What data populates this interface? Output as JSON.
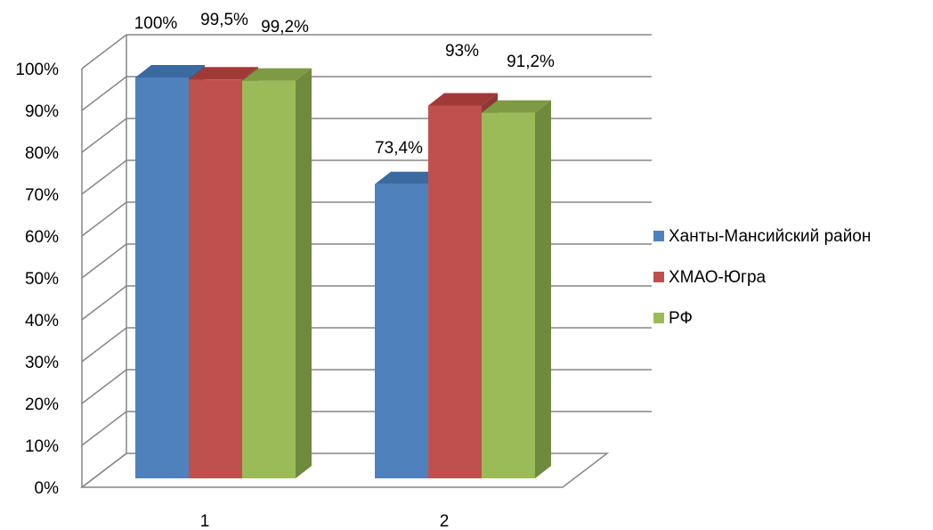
{
  "chart_data": {
    "type": "bar",
    "categories": [
      "1",
      "2"
    ],
    "series": [
      {
        "name": "Ханты-Мансийский район",
        "values": [
          100,
          73.4
        ],
        "labels": [
          "100%",
          "73,4%"
        ]
      },
      {
        "name": "ХМАО-Югра",
        "values": [
          99.5,
          93
        ],
        "labels": [
          "99,5%",
          "93%"
        ]
      },
      {
        "name": "РФ",
        "values": [
          99.2,
          91.2
        ],
        "labels": [
          "99,2%",
          "91,2%"
        ]
      }
    ],
    "y_ticks": [
      "0%",
      "10%",
      "20%",
      "30%",
      "40%",
      "50%",
      "60%",
      "70%",
      "80%",
      "90%",
      "100%"
    ],
    "ylim": [
      0,
      100
    ],
    "grid": true,
    "legend_position": "right",
    "colors": {
      "series_front": [
        "#4F81BD",
        "#C0504D",
        "#9BBB59"
      ],
      "series_top": [
        "#3A6AA0",
        "#A03A37",
        "#7E9A43"
      ],
      "series_side": [
        "#385D8A",
        "#8C3836",
        "#6F8A3C"
      ],
      "grid": "#868686",
      "axis": "#868686"
    },
    "title": "",
    "xlabel": "",
    "ylabel": ""
  }
}
